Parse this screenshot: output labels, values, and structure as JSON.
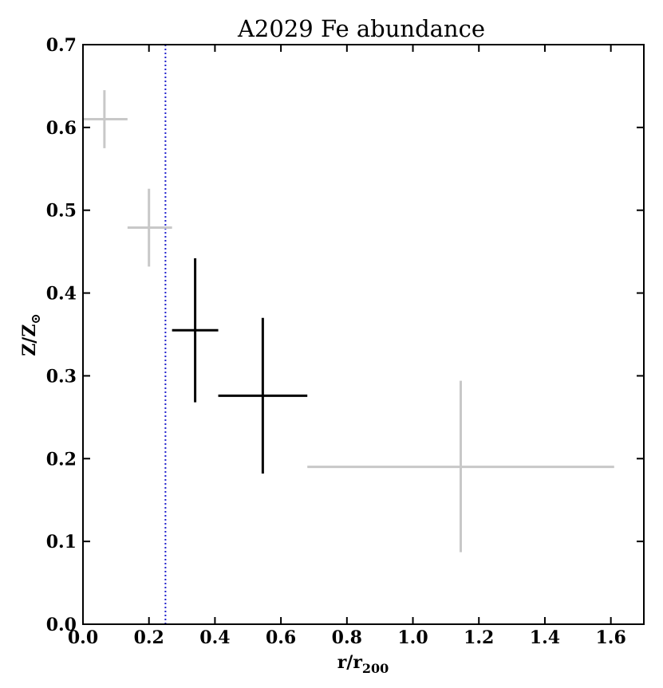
{
  "chart_data": {
    "type": "scatter",
    "title": "A2029 Fe abundance",
    "xlabel_main": "r/r",
    "xlabel_sub": "200",
    "ylabel_main": "Z/Z",
    "ylabel_sub": "⊙",
    "xlim": [
      0.0,
      1.7
    ],
    "ylim": [
      0.0,
      0.7
    ],
    "xticks": [
      0.0,
      0.2,
      0.4,
      0.6,
      0.8,
      1.0,
      1.2,
      1.4,
      1.6
    ],
    "xtick_labels": [
      "0.0",
      "0.2",
      "0.4",
      "0.6",
      "0.8",
      "1.0",
      "1.2",
      "1.4",
      "1.6"
    ],
    "yticks": [
      0.0,
      0.1,
      0.2,
      0.3,
      0.4,
      0.5,
      0.6,
      0.7
    ],
    "ytick_labels": [
      "0.0",
      "0.1",
      "0.2",
      "0.3",
      "0.4",
      "0.5",
      "0.6",
      "0.7"
    ],
    "vline": {
      "x": 0.25,
      "color": "#2222cc",
      "style": "dotted"
    },
    "points": [
      {
        "x": 0.065,
        "xlo": 0.0,
        "xhi": 0.135,
        "y": 0.61,
        "ylo": 0.575,
        "yhi": 0.645,
        "color": "#c8c8c8"
      },
      {
        "x": 0.2,
        "xlo": 0.135,
        "xhi": 0.27,
        "y": 0.479,
        "ylo": 0.432,
        "yhi": 0.526,
        "color": "#c8c8c8"
      },
      {
        "x": 0.34,
        "xlo": 0.27,
        "xhi": 0.41,
        "y": 0.355,
        "ylo": 0.268,
        "yhi": 0.442,
        "color": "#000000"
      },
      {
        "x": 0.545,
        "xlo": 0.41,
        "xhi": 0.68,
        "y": 0.276,
        "ylo": 0.182,
        "yhi": 0.37,
        "color": "#000000"
      },
      {
        "x": 1.145,
        "xlo": 0.68,
        "xhi": 1.61,
        "y": 0.19,
        "ylo": 0.087,
        "yhi": 0.294,
        "color": "#c8c8c8"
      }
    ]
  }
}
